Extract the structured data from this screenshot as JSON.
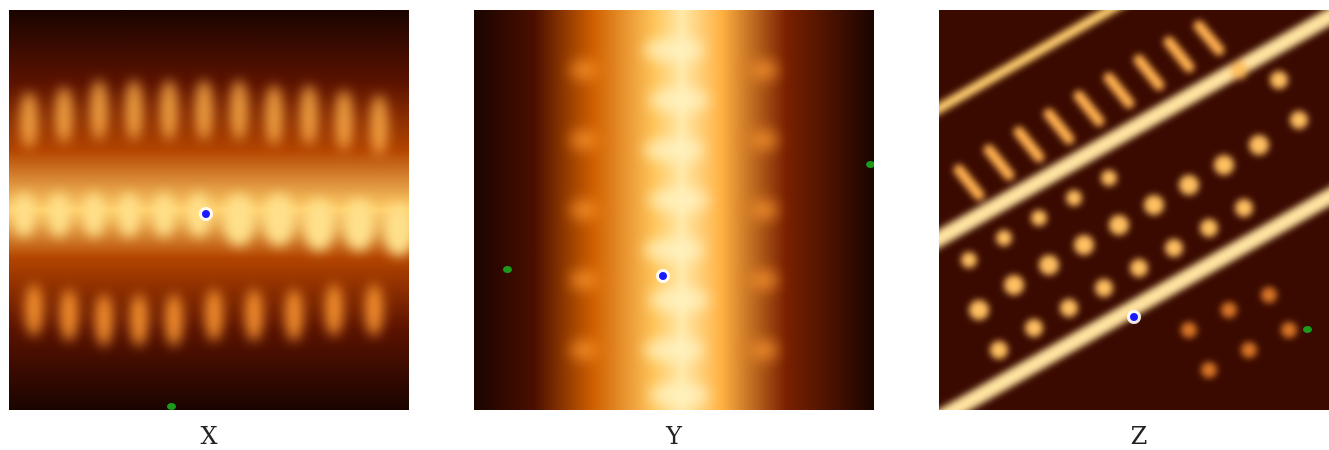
{
  "panels": [
    {
      "label": "X"
    },
    {
      "label": "Y"
    },
    {
      "label": "Z"
    }
  ],
  "colors": {
    "dark": "#1a0400",
    "mid": "#c04800",
    "bright": "#ffe9a8",
    "blue_marker": "#1a1aff",
    "green_marker": "#1b9a1b"
  }
}
